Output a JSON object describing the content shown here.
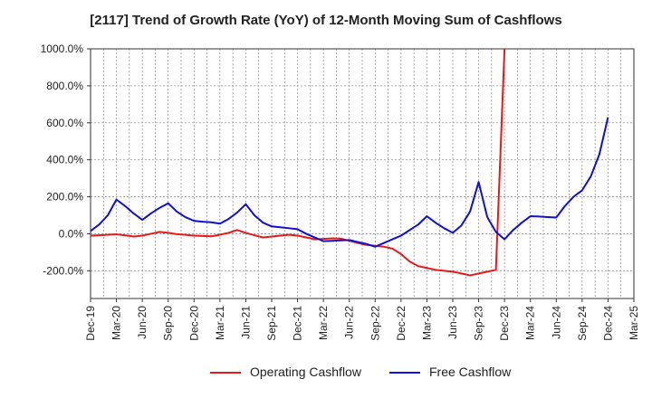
{
  "chart_data": {
    "type": "line",
    "title": "[2117]  Trend of Growth Rate (YoY) of 12-Month Moving Sum of Cashflows",
    "xlabel": "",
    "ylabel": "",
    "ylim": [
      -350,
      1000
    ],
    "y_ticks": [
      -200,
      0,
      200,
      400,
      600,
      800,
      1000
    ],
    "y_tick_labels": [
      "-200.0%",
      "0.0%",
      "200.0%",
      "400.0%",
      "600.0%",
      "800.0%",
      "1000.0%"
    ],
    "x_ticks": [
      "Dec-19",
      "Mar-20",
      "Jun-20",
      "Sep-20",
      "Dec-20",
      "Mar-21",
      "Jun-21",
      "Sep-21",
      "Dec-21",
      "Mar-22",
      "Jun-22",
      "Sep-22",
      "Dec-22",
      "Mar-23",
      "Jun-23",
      "Sep-23",
      "Dec-23",
      "Mar-24",
      "Jun-24",
      "Sep-24",
      "Dec-24",
      "Mar-25"
    ],
    "grid": true,
    "legend_position": "bottom",
    "series": [
      {
        "name": "Operating Cashflow",
        "color": "#e8191a",
        "values": [
          -10,
          -8,
          -5,
          -3,
          -8,
          -15,
          -10,
          0,
          10,
          5,
          -2,
          -6,
          -10,
          -12,
          -14,
          -5,
          5,
          20,
          5,
          -8,
          -20,
          -15,
          -10,
          -5,
          -10,
          -20,
          -30,
          -28,
          -25,
          -26,
          -38,
          -50,
          -60,
          -65,
          -70,
          -80,
          -110,
          -150,
          -175,
          -185,
          -195,
          -200,
          -205,
          -215,
          -225,
          -215,
          -205,
          -195,
          1000
        ]
      },
      {
        "name": "Free Cashflow",
        "color": "#1010d0",
        "values": [
          15,
          50,
          100,
          185,
          150,
          110,
          75,
          110,
          140,
          165,
          120,
          90,
          70,
          65,
          62,
          55,
          80,
          115,
          160,
          100,
          60,
          40,
          35,
          30,
          25,
          0,
          -20,
          -40,
          -38,
          -36,
          -34,
          -45,
          -55,
          -70,
          -50,
          -30,
          -10,
          20,
          50,
          95,
          60,
          30,
          5,
          45,
          120,
          280,
          90,
          10,
          -30,
          20,
          60,
          95,
          93,
          90,
          88,
          150,
          200,
          235,
          310,
          430,
          630
        ]
      }
    ]
  }
}
